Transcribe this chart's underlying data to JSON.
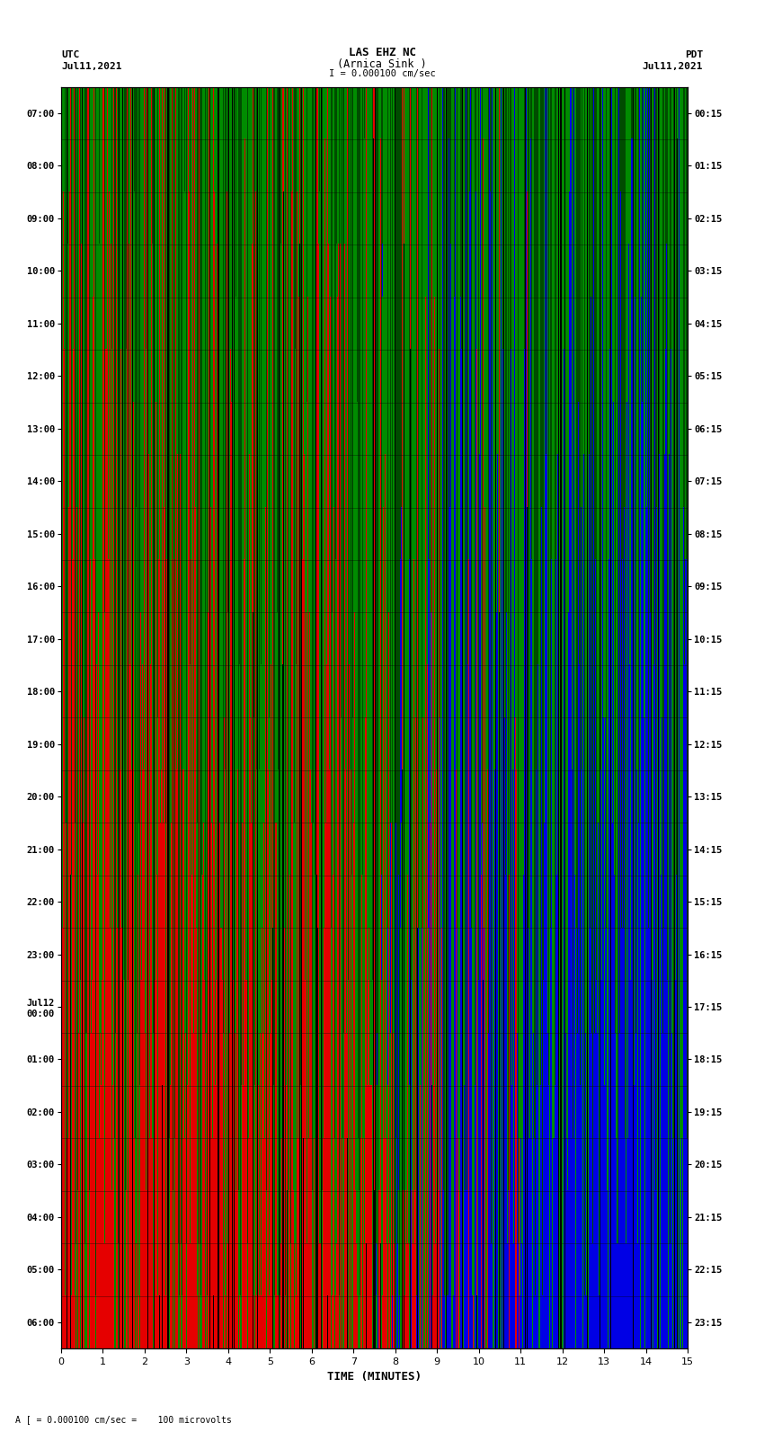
{
  "title_line1": "LAS EHZ NC",
  "title_line2": "(Arnica Sink )",
  "scale_label": "I = 0.000100 cm/sec",
  "footer_label": "A [ = 0.000100 cm/sec =    100 microvolts",
  "utc_label": "UTC",
  "utc_date": "Jul11,2021",
  "pdt_label": "PDT",
  "pdt_date": "Jul11,2021",
  "left_yticks": [
    "07:00",
    "08:00",
    "09:00",
    "10:00",
    "11:00",
    "12:00",
    "13:00",
    "14:00",
    "15:00",
    "16:00",
    "17:00",
    "18:00",
    "19:00",
    "20:00",
    "21:00",
    "22:00",
    "23:00",
    "Jul12\n00:00",
    "01:00",
    "02:00",
    "03:00",
    "04:00",
    "05:00",
    "06:00"
  ],
  "right_yticks": [
    "00:15",
    "01:15",
    "02:15",
    "03:15",
    "04:15",
    "05:15",
    "06:15",
    "07:15",
    "08:15",
    "09:15",
    "10:15",
    "11:15",
    "12:15",
    "13:15",
    "14:15",
    "15:15",
    "16:15",
    "17:15",
    "18:15",
    "19:15",
    "20:15",
    "21:15",
    "22:15",
    "23:15"
  ],
  "xlabel": "TIME (MINUTES)",
  "xlim": [
    0,
    15
  ],
  "num_rows": 24,
  "bg_color": "#ffffff",
  "seed": 42
}
